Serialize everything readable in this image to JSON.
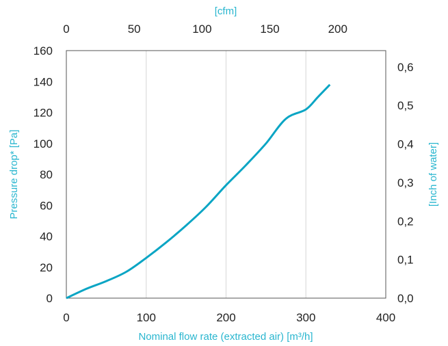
{
  "chart_data": {
    "type": "line",
    "xlabel": "Nominal flow rate (extracted air) [m³/h]",
    "ylabel": "Pressure drop* [Pa]",
    "x2label": "[cfm]",
    "y2label": "[Inch of water]",
    "xlim": [
      0,
      400
    ],
    "ylim": [
      0,
      160
    ],
    "x2lim": [
      0,
      235.4
    ],
    "y2lim": [
      0,
      0.6423
    ],
    "x_ticks": [
      "0",
      "100",
      "200",
      "300",
      "400"
    ],
    "y_ticks": [
      "0",
      "20",
      "40",
      "60",
      "80",
      "100",
      "120",
      "140",
      "160"
    ],
    "x2_ticks": [
      "0",
      "50",
      "100",
      "150",
      "200"
    ],
    "y2_ticks": [
      "0,0",
      "0,1",
      "0,2",
      "0,3",
      "0,4",
      "0,5",
      "0,6"
    ],
    "grid": "vertical",
    "series": [
      {
        "x": [
          0,
          25,
          50,
          75,
          100,
          125,
          150,
          175,
          200,
          225,
          250,
          275,
          300,
          315,
          330
        ],
        "y": [
          0,
          6,
          11,
          17,
          26,
          36,
          47,
          59,
          73,
          86,
          100,
          116,
          122,
          130,
          138
        ]
      }
    ]
  },
  "colors": {
    "accent": "#29b6cf",
    "line": "#0aa5c4",
    "grid": "#dcdcdc",
    "axis": "#555555",
    "text": "#222222"
  }
}
